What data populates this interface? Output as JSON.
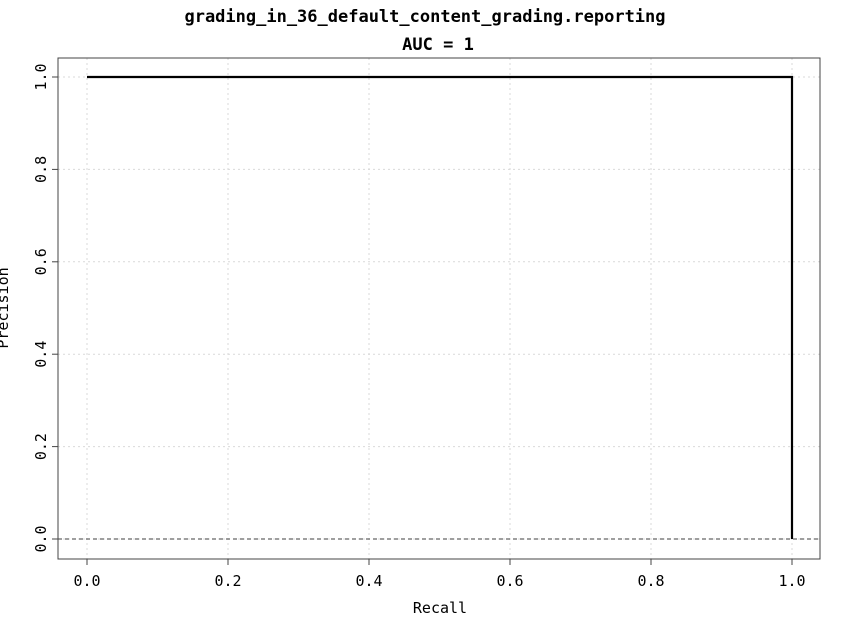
{
  "chart_data": {
    "type": "line",
    "title": "grading_in_36_default_content_grading.reporting",
    "subtitle": "AUC = 1",
    "xlabel": "Recall",
    "ylabel": "Precision",
    "xlim": [
      0.0,
      1.0
    ],
    "ylim": [
      0.0,
      1.0
    ],
    "xticks": [
      "0.0",
      "0.2",
      "0.4",
      "0.6",
      "0.8",
      "1.0"
    ],
    "yticks": [
      "0.0",
      "0.2",
      "0.4",
      "0.6",
      "0.8",
      "1.0"
    ],
    "grid": true,
    "series": [
      {
        "x": [
          0.0,
          1.0,
          1.0
        ],
        "y": [
          1.0,
          1.0,
          0.0
        ],
        "color": "#000000",
        "style": "solid"
      },
      {
        "x": [
          0.0,
          1.0
        ],
        "y": [
          0.0,
          0.0
        ],
        "color": "#666666",
        "style": "dashed"
      }
    ]
  }
}
